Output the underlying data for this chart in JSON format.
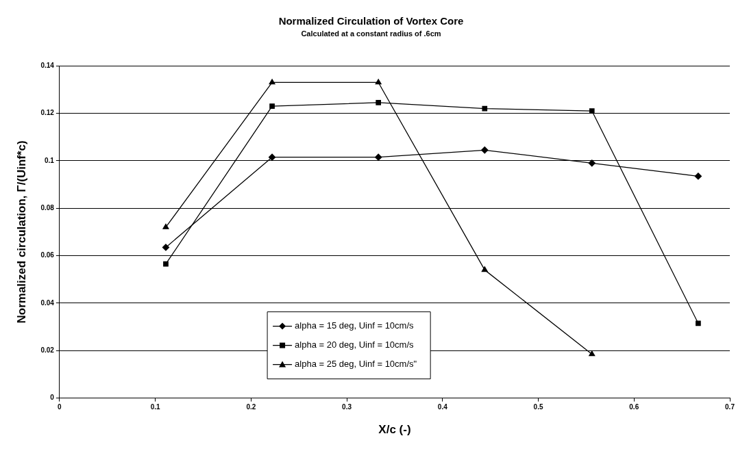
{
  "chart_data": {
    "type": "line",
    "title": "Normalized Circulation of Vortex Core",
    "subtitle": "Calculated at a constant radius of .6cm",
    "xlabel": "X/c (-)",
    "ylabel": "Normalized circulation, Γ/(Uinf*c)",
    "x": [
      0.111,
      0.222,
      0.333,
      0.444,
      0.556,
      0.667
    ],
    "series": [
      {
        "name": "alpha = 15 deg, Uinf = 10cm/s",
        "color": "#000000",
        "marker": "diamond",
        "values": [
          0.0635,
          0.1015,
          0.1015,
          0.1045,
          0.099,
          0.0935
        ]
      },
      {
        "name": "alpha = 20 deg, Uinf = 10cm/s",
        "color": "#000000",
        "marker": "square",
        "values": [
          0.0565,
          0.123,
          0.1245,
          0.122,
          0.121,
          0.0315
        ]
      },
      {
        "name": "alpha = 25 deg, Uinf = 10cm/s\"",
        "color": "#000000",
        "marker": "triangle",
        "values": [
          0.072,
          0.133,
          0.133,
          0.054,
          0.0185,
          null
        ]
      }
    ],
    "xlim": [
      0,
      0.7
    ],
    "xticks": [
      0,
      0.1,
      0.2,
      0.3,
      0.4,
      0.5,
      0.6,
      0.7
    ],
    "ylim": [
      0,
      0.14
    ],
    "yticks": [
      0,
      0.02,
      0.04,
      0.06,
      0.08,
      0.1,
      0.12,
      0.14
    ],
    "grid": "y",
    "legend": "bottom left",
    "line_style": "solid"
  }
}
